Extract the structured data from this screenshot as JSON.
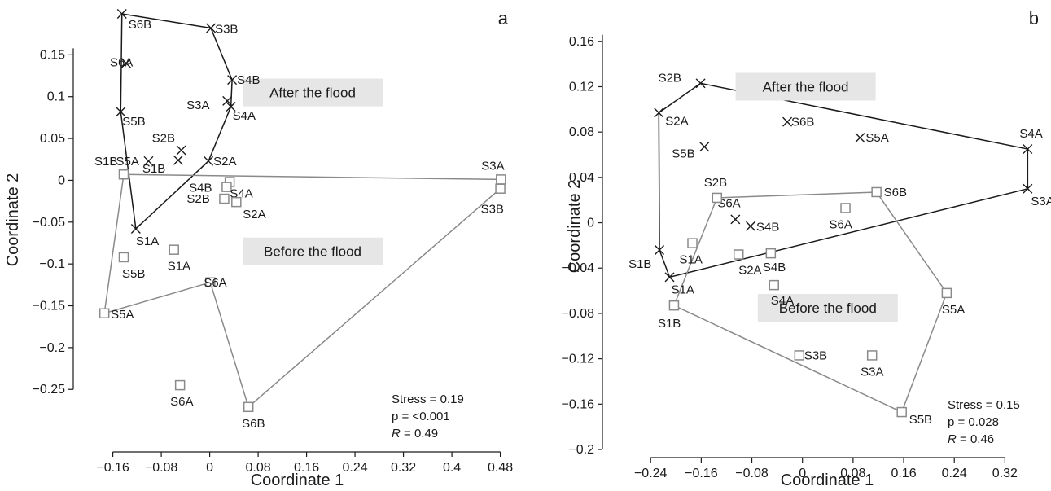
{
  "chart_data": [
    {
      "type": "scatter",
      "panel_label": "a",
      "xlabel": "Coordinate 1",
      "ylabel": "Coordinate 2",
      "xlim": [
        -0.185,
        0.49
      ],
      "ylim": [
        -0.315,
        0.2
      ],
      "xticks": [
        -0.16,
        -0.08,
        0,
        0.08,
        0.16,
        0.24,
        0.32,
        0.4,
        0.48
      ],
      "xtick_labels": [
        "−0.16",
        "−0.08",
        "0",
        "0.08",
        "0.16",
        "0.24",
        "0.32",
        "0.4",
        "0.48"
      ],
      "yticks": [
        -0.25,
        -0.2,
        -0.15,
        -0.1,
        -0.05,
        0,
        0.05,
        0.1,
        0.15
      ],
      "ytick_labels": [
        "−0.25",
        "−0.2",
        "−0.15",
        "−0.1",
        "−0.05",
        "0",
        "0.05",
        "0.1",
        "0.15"
      ],
      "grid": false,
      "series": [
        {
          "name": "After the flood",
          "marker": "x",
          "color": "#1a1a1a",
          "points": [
            {
              "x": -0.145,
              "y": 0.199,
              "label": "S6B"
            },
            {
              "x": 0.002,
              "y": 0.182,
              "label": "S3B"
            },
            {
              "x": -0.147,
              "y": 0.082,
              "label": "S5B"
            },
            {
              "x": 0.037,
              "y": 0.12,
              "label": "S4B"
            },
            {
              "x": 0.029,
              "y": 0.095,
              "label": "S3A"
            },
            {
              "x": 0.035,
              "y": 0.088,
              "label": "S4A"
            },
            {
              "x": -0.047,
              "y": 0.036,
              "label": "S2B"
            },
            {
              "x": -0.101,
              "y": 0.023,
              "label": "S5A"
            },
            {
              "x": -0.052,
              "y": 0.024,
              "label": "S1B"
            },
            {
              "x": -0.002,
              "y": 0.023,
              "label": "S2A"
            },
            {
              "x": -0.122,
              "y": -0.058,
              "label": "S1A"
            },
            {
              "x": -0.138,
              "y": 0.14,
              "label": "S6A"
            }
          ],
          "hull": [
            "S6B",
            "S3B",
            "S4B",
            "S4A",
            "S2A",
            "S1A",
            "S5B"
          ]
        },
        {
          "name": "Before the flood",
          "marker": "square",
          "color": "#8a8a8a",
          "points": [
            {
              "x": -0.142,
              "y": 0.007,
              "label": "S1B"
            },
            {
              "x": 0.481,
              "y": 0.001,
              "label": "S3A"
            },
            {
              "x": 0.48,
              "y": -0.01,
              "label": "S3B"
            },
            {
              "x": 0.033,
              "y": -0.002,
              "label": "S4B"
            },
            {
              "x": 0.028,
              "y": -0.008,
              "label": "S4A"
            },
            {
              "x": 0.024,
              "y": -0.022,
              "label": "S2B"
            },
            {
              "x": 0.044,
              "y": -0.026,
              "label": "S2A"
            },
            {
              "x": -0.059,
              "y": -0.083,
              "label": "S1A"
            },
            {
              "x": -0.142,
              "y": -0.092,
              "label": "S5B"
            },
            {
              "x": 0.001,
              "y": -0.122,
              "label": "S6A"
            },
            {
              "x": -0.174,
              "y": -0.159,
              "label": "S5A"
            },
            {
              "x": -0.049,
              "y": -0.245,
              "label": "S6A"
            },
            {
              "x": 0.064,
              "y": -0.271,
              "label": "S6B"
            }
          ],
          "hull": [
            "S1B",
            "S3A",
            "S3B",
            "S6B",
            "S6A",
            "S5A"
          ]
        }
      ],
      "annotations": [
        {
          "text": "After the flood",
          "x": 0.17,
          "y": 0.105
        },
        {
          "text": "Before the flood",
          "x": 0.17,
          "y": -0.085
        }
      ],
      "stats": {
        "stress": "Stress = 0.19",
        "p": "p = <0.001",
        "r_symbol": "R",
        "r_value": " = 0.49"
      }
    },
    {
      "type": "scatter",
      "panel_label": "b",
      "xlabel": "Coordinate 1",
      "ylabel": "Coordinate 2",
      "xlim": [
        -0.275,
        0.38
      ],
      "ylim": [
        -0.2,
        0.185
      ],
      "xticks": [
        -0.24,
        -0.16,
        -0.08,
        0,
        0.08,
        0.16,
        0.24,
        0.32
      ],
      "xtick_labels": [
        "−0.24",
        "−0.16",
        "−0.08",
        "0",
        "0.08",
        "0.16",
        "0.24",
        "0.32"
      ],
      "yticks": [
        -0.2,
        -0.16,
        -0.12,
        -0.08,
        -0.04,
        0,
        0.04,
        0.08,
        0.12,
        0.16
      ],
      "ytick_labels": [
        "−0.2",
        "−0.16",
        "−0.12",
        "−0.08",
        "−0.04",
        "0",
        "0.04",
        "0.08",
        "0.12",
        "0.16"
      ],
      "grid": false,
      "series": [
        {
          "name": "After the flood",
          "marker": "x",
          "color": "#1a1a1a",
          "points": [
            {
              "x": -0.161,
              "y": 0.123,
              "label": "S2B"
            },
            {
              "x": -0.227,
              "y": 0.097,
              "label": "S2A"
            },
            {
              "x": -0.024,
              "y": 0.089,
              "label": "S6B"
            },
            {
              "x": -0.155,
              "y": 0.067,
              "label": "S5B"
            },
            {
              "x": 0.091,
              "y": 0.075,
              "label": "S5A"
            },
            {
              "x": 0.356,
              "y": 0.065,
              "label": "S4A"
            },
            {
              "x": 0.356,
              "y": 0.03,
              "label": "S3A"
            },
            {
              "x": -0.106,
              "y": 0.003,
              "label": "S6A"
            },
            {
              "x": -0.082,
              "y": -0.003,
              "label": "S4B"
            },
            {
              "x": -0.226,
              "y": -0.024,
              "label": "S1B"
            },
            {
              "x": -0.21,
              "y": -0.048,
              "label": "S1A"
            }
          ],
          "hull": [
            "S2B",
            "S4A",
            "S3A",
            "S1A",
            "S1B",
            "S2A"
          ]
        },
        {
          "name": "Before the flood",
          "marker": "square",
          "color": "#8a8a8a",
          "points": [
            {
              "x": -0.135,
              "y": 0.022,
              "label": "S2B"
            },
            {
              "x": 0.117,
              "y": 0.027,
              "label": "S6B"
            },
            {
              "x": 0.068,
              "y": 0.013,
              "label": "S6A"
            },
            {
              "x": -0.174,
              "y": -0.018,
              "label": "S1A"
            },
            {
              "x": -0.101,
              "y": -0.028,
              "label": "S2A"
            },
            {
              "x": -0.05,
              "y": -0.027,
              "label": "S4B"
            },
            {
              "x": -0.045,
              "y": -0.055,
              "label": "S4A"
            },
            {
              "x": 0.228,
              "y": -0.062,
              "label": "S5A"
            },
            {
              "x": -0.203,
              "y": -0.073,
              "label": "S1B"
            },
            {
              "x": -0.005,
              "y": -0.117,
              "label": "S3B"
            },
            {
              "x": 0.11,
              "y": -0.117,
              "label": "S3A"
            },
            {
              "x": 0.157,
              "y": -0.167,
              "label": "S5B"
            }
          ],
          "hull": [
            "S2B",
            "S6B",
            "S5A",
            "S5B",
            "S1B"
          ]
        }
      ],
      "annotations": [
        {
          "text": "After the flood",
          "x": 0.005,
          "y": 0.12
        },
        {
          "text": "Before the flood",
          "x": 0.04,
          "y": -0.075
        }
      ],
      "stats": {
        "stress": "Stress = 0.15",
        "p": "p = 0.028",
        "r_symbol": "R",
        "r_value": " = 0.46"
      }
    }
  ]
}
